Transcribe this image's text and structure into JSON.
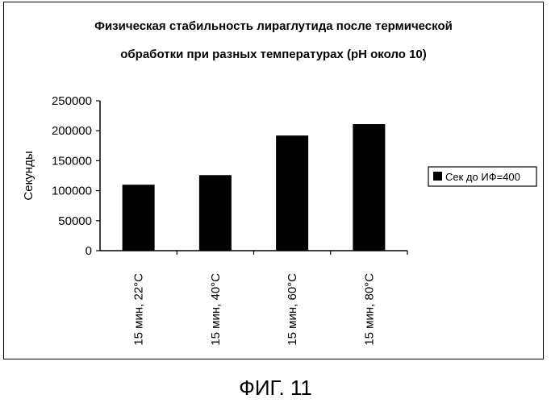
{
  "chart_data": {
    "type": "bar",
    "title_lines": [
      "Физическая стабильность лираглутида после термической",
      "обработки при разных температурах (pH около 10)"
    ],
    "xlabel": "",
    "ylabel": "Секунды",
    "categories": [
      "15 мин, 22°C",
      "15 мин, 40°C",
      "15 мин, 60°C",
      "15 мин, 80°C"
    ],
    "series": [
      {
        "name": "Сек до ИФ=400",
        "values": [
          110000,
          126000,
          192000,
          211000
        ],
        "color": "#000000"
      }
    ],
    "ylim": [
      0,
      250000
    ],
    "yticks": [
      0,
      50000,
      100000,
      150000,
      200000,
      250000
    ],
    "grid": false,
    "legend_position": "right"
  },
  "caption": "ФИГ. 11"
}
